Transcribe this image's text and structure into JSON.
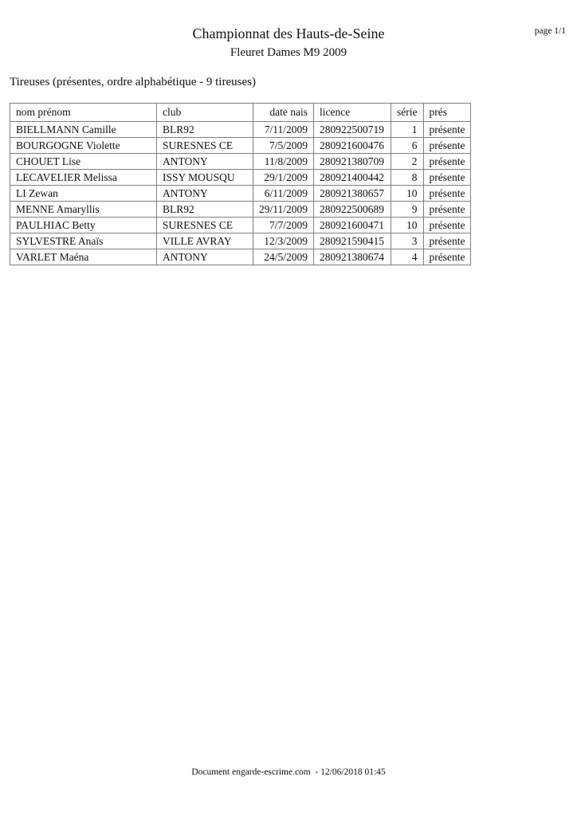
{
  "page": {
    "title": "Championnat des Hauts-de-Seine",
    "subtitle": "Fleuret Dames M9 2009",
    "page_indicator": "page 1/1",
    "section_heading": "Tireuses (présentes, ordre alphabétique - 9 tireuses)",
    "footer": "Document engarde-escrime.com  - 12/06/2018 01:45"
  },
  "colors": {
    "table_border": "#7f7f7f",
    "text": "#111111",
    "background": "#ffffff"
  },
  "table": {
    "columns": [
      {
        "key": "name",
        "label": "nom prénom",
        "align": "left"
      },
      {
        "key": "club",
        "label": "club",
        "align": "left"
      },
      {
        "key": "date",
        "label": "date nais",
        "align": "right"
      },
      {
        "key": "licence",
        "label": "licence",
        "align": "left"
      },
      {
        "key": "serie",
        "label": "série",
        "align": "right"
      },
      {
        "key": "pres",
        "label": "prés",
        "align": "left"
      }
    ],
    "rows": [
      [
        "BIELLMANN Camille",
        "BLR92",
        "7/11/2009",
        "280922500719",
        "1",
        "présente"
      ],
      [
        "BOURGOGNE Violette",
        "SURESNES CE",
        "7/5/2009",
        "280921600476",
        "6",
        "présente"
      ],
      [
        "CHOUET Lise",
        "ANTONY",
        "11/8/2009",
        "280921380709",
        "2",
        "présente"
      ],
      [
        "LECAVELIER Melissa",
        "ISSY MOUSQU",
        "29/1/2009",
        "280921400442",
        "8",
        "présente"
      ],
      [
        "LI Zewan",
        "ANTONY",
        "6/11/2009",
        "280921380657",
        "10",
        "présente"
      ],
      [
        "MENNE Amaryllis",
        "BLR92",
        "29/11/2009",
        "280922500689",
        "9",
        "présente"
      ],
      [
        "PAULHIAC Betty",
        "SURESNES CE",
        "7/7/2009",
        "280921600471",
        "10",
        "présente"
      ],
      [
        "SYLVESTRE Anaïs",
        "VILLE AVRAY",
        "12/3/2009",
        "280921590415",
        "3",
        "présente"
      ],
      [
        "VARLET Maéna",
        "ANTONY",
        "24/5/2009",
        "280921380674",
        "4",
        "présente"
      ]
    ]
  }
}
